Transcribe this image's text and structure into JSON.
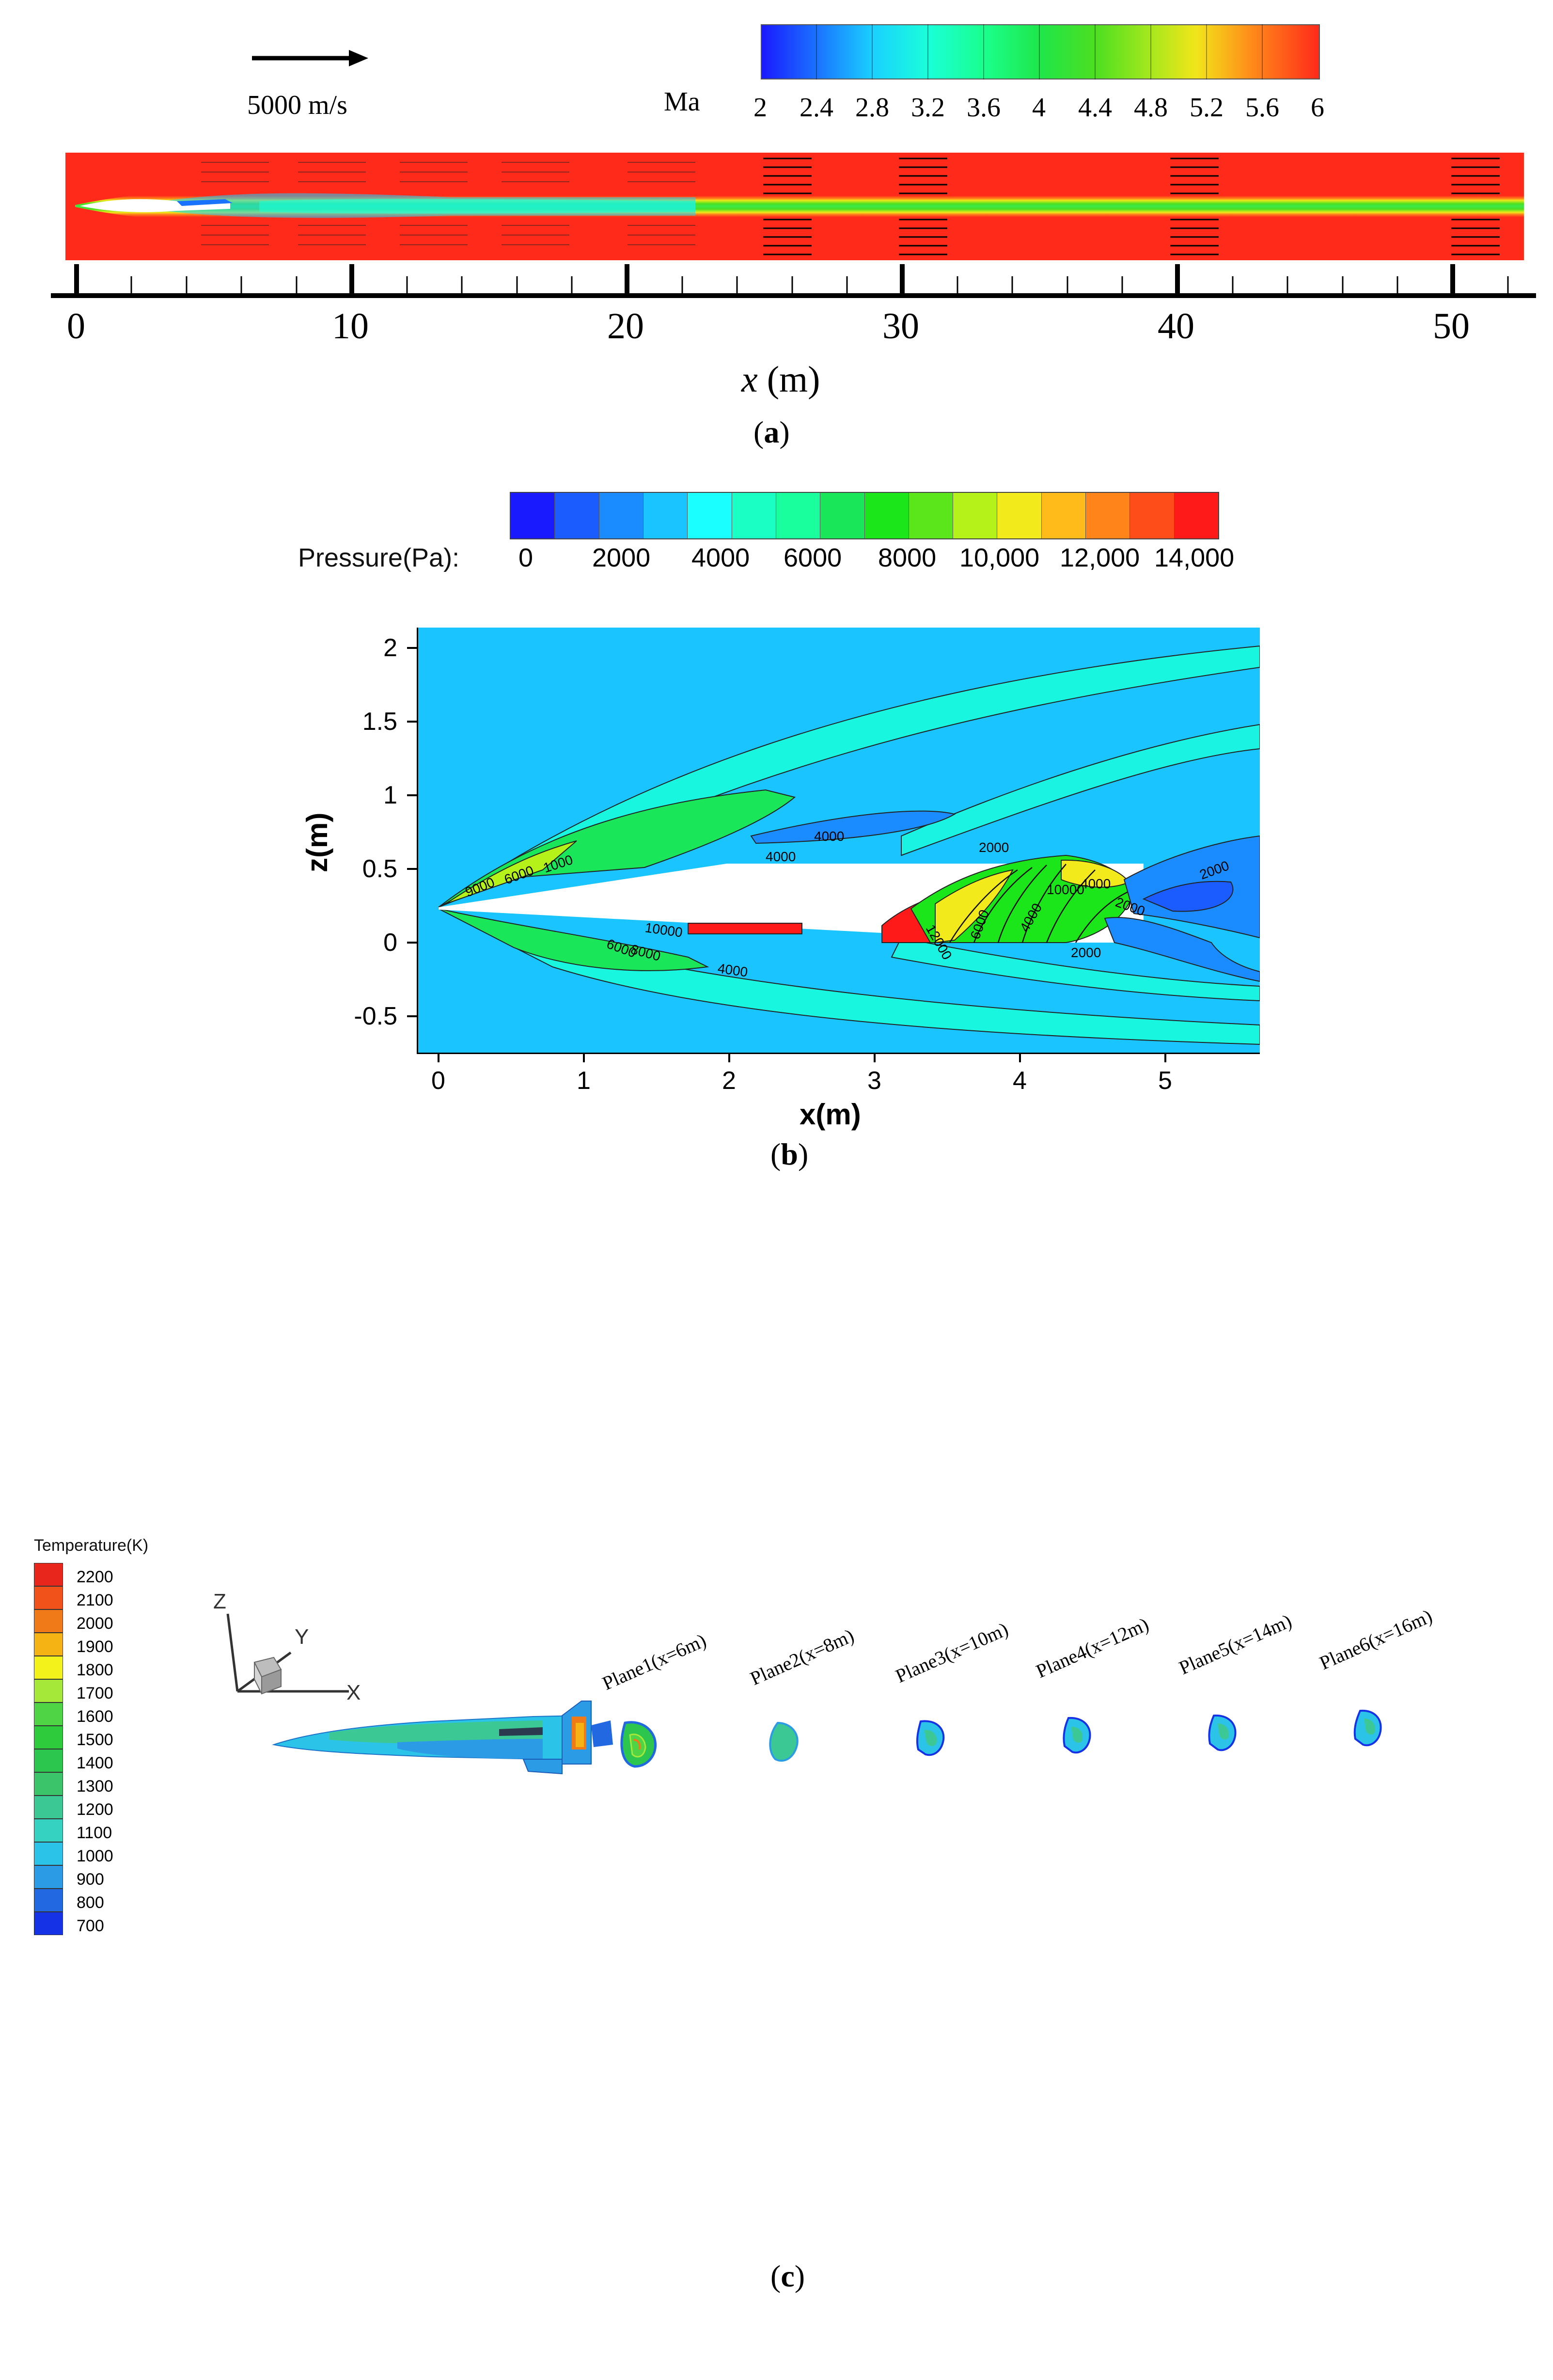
{
  "panel_a": {
    "velocity_scale_label": "5000 m/s",
    "colorbar": {
      "title": "Ma",
      "ticks": [
        "2",
        "2.4",
        "2.8",
        "3.2",
        "3.6",
        "4",
        "4.4",
        "4.8",
        "5.2",
        "5.6",
        "6"
      ]
    },
    "axis": {
      "ticks": [
        "0",
        "10",
        "20",
        "30",
        "40",
        "50"
      ],
      "label_var": "x",
      "label_unit": " (m)"
    },
    "caption_letter": "a"
  },
  "panel_b": {
    "colorbar": {
      "title": "Pressure(Pa):",
      "ticks": [
        "0",
        "2000",
        "4000",
        "6000",
        "8000",
        "10,000",
        "12,000",
        "14,000"
      ]
    },
    "x_axis": {
      "ticks": [
        "0",
        "1",
        "2",
        "3",
        "4",
        "5"
      ],
      "label": "x(m)"
    },
    "z_axis": {
      "ticks": [
        "2",
        "1.5",
        "1",
        "0.5",
        "0",
        "-0.5"
      ],
      "label": "z(m)"
    },
    "contour_labels": [
      "4000",
      "4000",
      "2000",
      "9000",
      "6000",
      "1000",
      "10000",
      "6000",
      "8000",
      "4000",
      "4000",
      "10000",
      "2000",
      "2000",
      "12000",
      "6000",
      "4000",
      "2000"
    ],
    "caption_letter": "b"
  },
  "panel_c": {
    "legend": {
      "title": "Temperature(K)",
      "levels": [
        "2200",
        "2100",
        "2000",
        "1900",
        "1800",
        "1700",
        "1600",
        "1500",
        "1400",
        "1300",
        "1200",
        "1100",
        "1000",
        "900",
        "800",
        "700"
      ],
      "colors": [
        "#e8261c",
        "#f0521a",
        "#f07a18",
        "#f5b414",
        "#f4f21b",
        "#a6e83a",
        "#4fd446",
        "#2ecb3c",
        "#2cc64e",
        "#3cc46a",
        "#3cc895",
        "#35d2c2",
        "#2cc3e8",
        "#2a9be4",
        "#2268e0",
        "#1632e6"
      ]
    },
    "axes": {
      "z": "Z",
      "y": "Y",
      "x": "X"
    },
    "planes": [
      "Plane1(x=6m)",
      "Plane2(x=8m)",
      "Plane3(x=10m)",
      "Plane4(x=12m)",
      "Plane5(x=14m)",
      "Plane6(x=16m)"
    ],
    "caption_letter": "c"
  },
  "colors": {
    "ma_scale": [
      "#1a1aff",
      "#1a73ff",
      "#1ad1ff",
      "#1affd9",
      "#1aff8c",
      "#1fe64a",
      "#4ddf20",
      "#a8e81d",
      "#f2e51a",
      "#ff8a1a",
      "#ff2a1a"
    ],
    "pressure_scale": [
      "#1a1aff",
      "#1a5cff",
      "#1a8cff",
      "#1ac4ff",
      "#1affff",
      "#1aff9e",
      "#1ae65a",
      "#1ae61a",
      "#5ae61a",
      "#b4f21a",
      "#f2ea1a",
      "#ffbb1a",
      "#ff851a",
      "#ff4d1a",
      "#ff1a1a"
    ]
  }
}
